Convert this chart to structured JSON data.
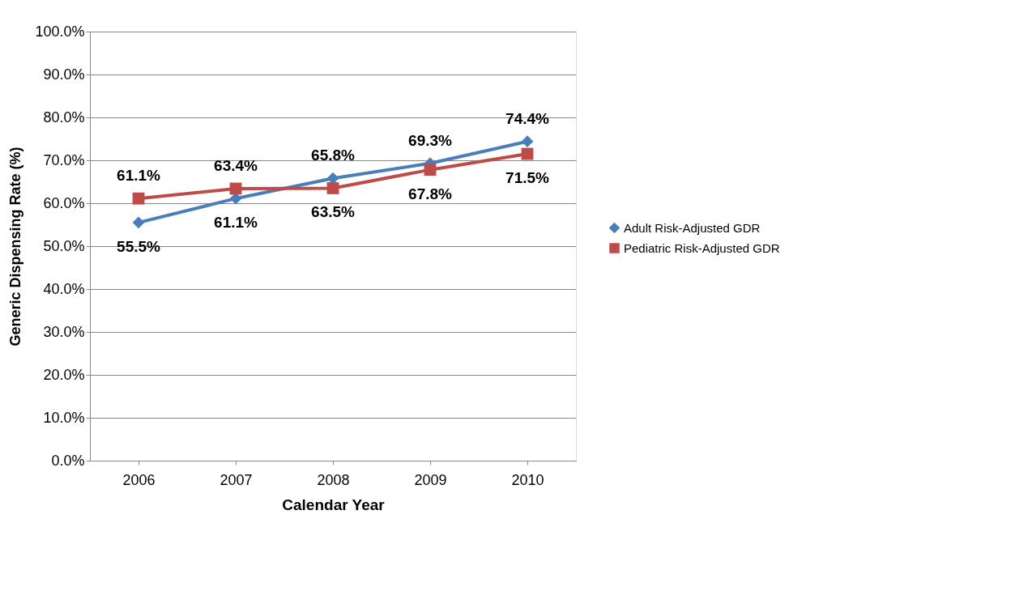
{
  "chart_data": {
    "type": "line",
    "xlabel": "Calendar Year",
    "ylabel": "Generic Dispensing Rate (%)",
    "categories": [
      "2006",
      "2007",
      "2008",
      "2009",
      "2010"
    ],
    "series": [
      {
        "name": "Adult Risk-Adjusted GDR",
        "color": "#4a7ebb",
        "marker": "diamond",
        "values": [
          55.5,
          61.1,
          65.8,
          69.3,
          74.4
        ],
        "value_labels": [
          "55.5%",
          "61.1%",
          "65.8%",
          "69.3%",
          "74.4%"
        ]
      },
      {
        "name": "Pediatric Risk-Adjusted GDR",
        "color": "#be4b48",
        "marker": "square",
        "values": [
          61.1,
          63.4,
          63.5,
          67.8,
          71.5
        ],
        "value_labels": [
          "61.1%",
          "63.4%",
          "63.5%",
          "67.8%",
          "71.5%"
        ]
      }
    ],
    "ylim": [
      0,
      100
    ],
    "yticks": [
      {
        "value": 0,
        "label": "0.0%"
      },
      {
        "value": 10,
        "label": "10.0%"
      },
      {
        "value": 20,
        "label": "20.0%"
      },
      {
        "value": 30,
        "label": "30.0%"
      },
      {
        "value": 40,
        "label": "40.0%"
      },
      {
        "value": 50,
        "label": "50.0%"
      },
      {
        "value": 60,
        "label": "60.0%"
      },
      {
        "value": 70,
        "label": "70.0%"
      },
      {
        "value": 80,
        "label": "80.0%"
      },
      {
        "value": 90,
        "label": "90.0%"
      },
      {
        "value": 100,
        "label": "100.0%"
      }
    ],
    "grid": "y",
    "legend": "right",
    "line_style": "solid"
  }
}
